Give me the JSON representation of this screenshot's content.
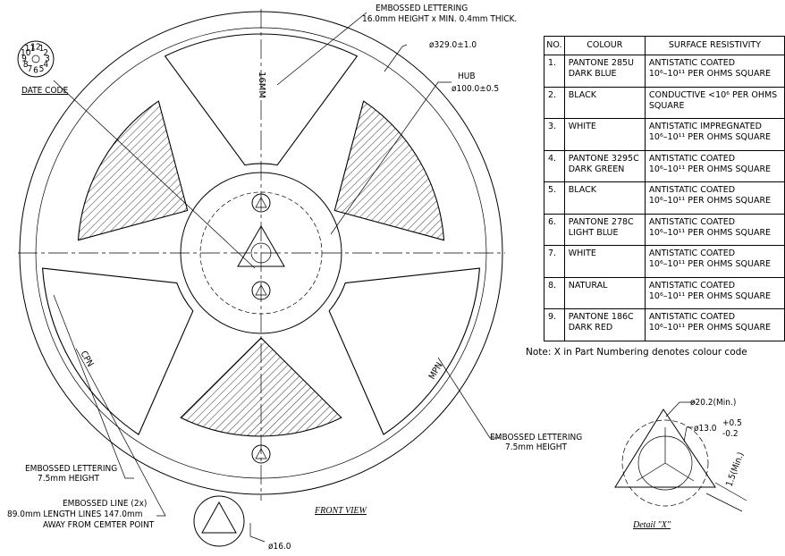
{
  "reel": {
    "embossed_top": [
      "EMBOSSED LETTERING",
      "16.0mm HEIGHT x MIN. 0.4mm THICK."
    ],
    "diameter": "ø329.0±1.0",
    "hub": [
      "HUB",
      "ø100.0±0.5"
    ],
    "date_code": "DATE CODE",
    "dial": [
      "12",
      "1",
      "2",
      "3",
      "4",
      "5",
      "6",
      "7",
      "8",
      "9",
      "10",
      "11"
    ],
    "width_text": "16MM",
    "cpn": "CPN",
    "mpn": "MPN",
    "embossed_right": [
      "EMBOSSED LETTERING",
      "7.5mm HEIGHT"
    ],
    "embossed_left": [
      "EMBOSSED LETTERING",
      "7.5mm HEIGHT"
    ],
    "embossed_line": [
      "EMBOSSED LINE (2x)",
      "89.0mm LENGTH LINES 147.0mm",
      "AWAY FROM CEMTER POINT"
    ],
    "esd_dia": "ø16.0",
    "front_view": "FRONT VIEW"
  },
  "table": {
    "header": [
      "NO.",
      "COLOUR",
      "SURFACE RESISTIVITY"
    ],
    "rows": [
      [
        "1.",
        "PANTONE 285U\nDARK BLUE",
        "ANTISTATIC COATED\n10⁶–10¹¹ PER OHMS SQUARE"
      ],
      [
        "2.",
        "BLACK",
        "CONDUCTIVE <10⁶ PER OHMS\nSQUARE"
      ],
      [
        "3.",
        "WHITE",
        "ANTISTATIC IMPREGNATED\n10⁶–10¹¹ PER OHMS SQUARE"
      ],
      [
        "4.",
        "PANTONE 3295C\nDARK GREEN",
        "ANTISTATIC COATED\n10⁶–10¹¹ PER OHMS SQUARE"
      ],
      [
        "5.",
        "BLACK",
        "ANTISTATIC COATED\n10⁶–10¹¹ PER OHMS SQUARE"
      ],
      [
        "6.",
        "PANTONE 278C\nLIGHT BLUE",
        "ANTISTATIC COATED\n10⁶–10¹¹ PER OHMS SQUARE"
      ],
      [
        "7.",
        "WHITE",
        "ANTISTATIC COATED\n10⁶–10¹¹ PER OHMS SQUARE"
      ],
      [
        "8.",
        "NATURAL",
        "ANTISTATIC COATED\n10⁶–10¹¹ PER OHMS SQUARE"
      ],
      [
        "9.",
        "PANTONE 186C\nDARK RED",
        "ANTISTATIC COATED\n10⁶–10¹¹ PER OHMS SQUARE"
      ]
    ]
  },
  "note": "Note: X in Part Numbering denotes colour code",
  "detail": {
    "outer_dia": "ø20.2(Min.)",
    "inner_dia": "ø13.0",
    "tol_plus": "+0.5",
    "tol_minus": "-0.2",
    "gap": "1.5(Min.)",
    "label": "Detail \"X\""
  }
}
